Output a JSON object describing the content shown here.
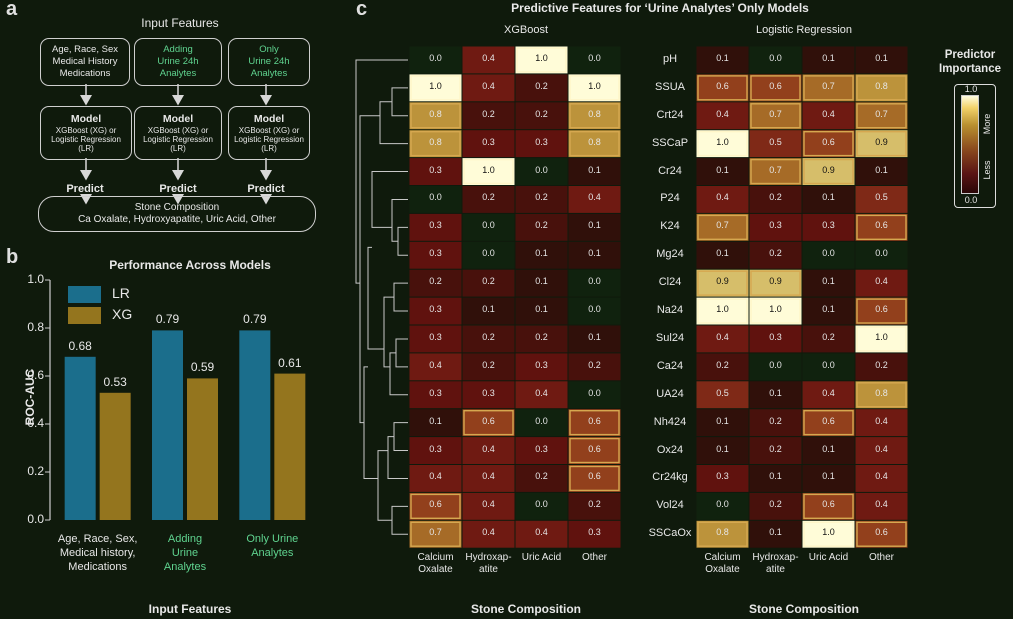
{
  "panel_a": {
    "letter": "a",
    "title": "Input Features",
    "inputs": [
      {
        "lines": [
          "Age, Race, Sex",
          "Medical History",
          "Medications"
        ],
        "green": false
      },
      {
        "lines": [
          "Adding",
          "Urine 24h",
          "Analytes"
        ],
        "green": true
      },
      {
        "lines": [
          "Only",
          "Urine 24h",
          "Analytes"
        ],
        "green": true
      }
    ],
    "model_title": "Model",
    "model_sub": [
      "XGBoost (XG) or",
      "Logistic Regression",
      "(LR)"
    ],
    "predict": "Predict",
    "output_title": "Stone Composition",
    "output_sub": "Ca Oxalate, Hydroxyapatite, Uric Acid, Other"
  },
  "panel_b": {
    "letter": "b",
    "chart_data": {
      "type": "bar",
      "title": "Performance Across Models",
      "xlabel": "Input Features",
      "ylabel": "ROC-AUC",
      "ylim": [
        0.0,
        1.0
      ],
      "yticks": [
        "0.0",
        "0.2",
        "0.4",
        "0.6",
        "0.8",
        "1.0"
      ],
      "categories": [
        [
          "Age, Race, Sex,",
          "Medical history,",
          "Medications"
        ],
        [
          "Adding",
          "Urine",
          "Analytes"
        ],
        [
          "Only Urine",
          "Analytes"
        ]
      ],
      "category_green": [
        false,
        true,
        true
      ],
      "series": [
        {
          "name": "LR",
          "color": "#1b6e8c",
          "values": [
            0.68,
            0.79,
            0.79
          ],
          "labels": [
            "0.68",
            "0.79",
            "0.79"
          ]
        },
        {
          "name": "XG",
          "color": "#94751e",
          "values": [
            0.53,
            0.59,
            0.61
          ],
          "labels": [
            "0.53",
            "0.59",
            "0.61"
          ]
        }
      ],
      "legend_position": "top-left"
    }
  },
  "panel_c": {
    "letter": "c",
    "chart_data": {
      "type": "heatmap",
      "title": "Predictive Features for ‘Urine Analytes’ Only Models",
      "features": [
        "pH",
        "SSUA",
        "Crt24",
        "SSCaP",
        "Cr24",
        "P24",
        "K24",
        "Mg24",
        "Cl24",
        "Na24",
        "Sul24",
        "Ca24",
        "UA24",
        "Nh424",
        "Ox24",
        "Cr24kg",
        "Vol24",
        "SSCaOx"
      ],
      "columns": [
        [
          "Calcium",
          "Oxalate"
        ],
        [
          "Hydroxap-",
          "atite"
        ],
        [
          "Uric Acid"
        ],
        [
          "Other"
        ]
      ],
      "xlabel": "Stone Composition",
      "models": [
        {
          "name": "XGBoost",
          "values": [
            [
              0.0,
              0.4,
              1.0,
              0.0
            ],
            [
              1.0,
              0.4,
              0.2,
              1.0
            ],
            [
              0.8,
              0.2,
              0.2,
              0.8
            ],
            [
              0.8,
              0.3,
              0.3,
              0.8
            ],
            [
              0.3,
              1.0,
              0.0,
              0.1
            ],
            [
              0.0,
              0.2,
              0.2,
              0.4
            ],
            [
              0.3,
              0.0,
              0.2,
              0.1
            ],
            [
              0.3,
              0.0,
              0.1,
              0.1
            ],
            [
              0.2,
              0.2,
              0.1,
              0.0
            ],
            [
              0.3,
              0.1,
              0.1,
              0.0
            ],
            [
              0.3,
              0.2,
              0.2,
              0.1
            ],
            [
              0.4,
              0.2,
              0.3,
              0.2
            ],
            [
              0.3,
              0.3,
              0.4,
              0.0
            ],
            [
              0.1,
              0.6,
              0.0,
              0.6
            ],
            [
              0.3,
              0.4,
              0.3,
              0.6
            ],
            [
              0.4,
              0.4,
              0.2,
              0.6
            ],
            [
              0.6,
              0.4,
              0.0,
              0.2
            ],
            [
              0.7,
              0.4,
              0.4,
              0.3
            ]
          ]
        },
        {
          "name": "Logistic Regression",
          "values": [
            [
              0.1,
              0.0,
              0.1,
              0.1
            ],
            [
              0.6,
              0.6,
              0.7,
              0.8
            ],
            [
              0.4,
              0.7,
              0.4,
              0.7
            ],
            [
              1.0,
              0.5,
              0.6,
              0.9
            ],
            [
              0.1,
              0.7,
              0.9,
              0.1
            ],
            [
              0.4,
              0.2,
              0.1,
              0.5
            ],
            [
              0.7,
              0.3,
              0.3,
              0.6
            ],
            [
              0.1,
              0.2,
              0.0,
              0.0
            ],
            [
              0.9,
              0.9,
              0.1,
              0.4
            ],
            [
              1.0,
              1.0,
              0.1,
              0.6
            ],
            [
              0.4,
              0.3,
              0.2,
              1.0
            ],
            [
              0.2,
              0.0,
              0.0,
              0.2
            ],
            [
              0.5,
              0.1,
              0.4,
              0.8
            ],
            [
              0.1,
              0.2,
              0.6,
              0.4
            ],
            [
              0.1,
              0.2,
              0.1,
              0.4
            ],
            [
              0.3,
              0.1,
              0.1,
              0.4
            ],
            [
              0.0,
              0.2,
              0.6,
              0.4
            ],
            [
              0.8,
              0.1,
              1.0,
              0.6
            ]
          ]
        }
      ],
      "colorbar": {
        "title": [
          "Predictor",
          "Importance"
        ],
        "max_label": "1.0",
        "min_label": "0.0",
        "more": "More",
        "less": "Less"
      },
      "dendrogram": true
    }
  }
}
